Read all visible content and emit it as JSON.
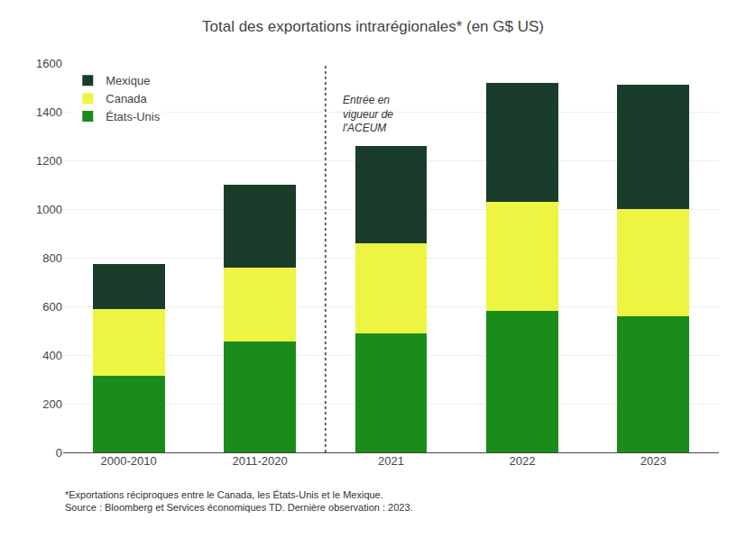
{
  "chart_data": {
    "type": "bar",
    "title": "Total des exportations intrarégionales* (en G$ US)",
    "categories": [
      "2000-2010",
      "2011-2020",
      "2021",
      "2022",
      "2023"
    ],
    "stacked": true,
    "series": [
      {
        "name": "États-Unis",
        "color": "#1a8c1a",
        "values": [
          315,
          455,
          490,
          580,
          560
        ]
      },
      {
        "name": "Canada",
        "color": "#edf542",
        "values": [
          275,
          305,
          370,
          450,
          440
        ]
      },
      {
        "name": "Mexique",
        "color": "#1a3d2b",
        "values": [
          185,
          340,
          400,
          490,
          510
        ]
      }
    ],
    "ylim": [
      0,
      1600
    ],
    "yticks": [
      0,
      200,
      400,
      600,
      800,
      1000,
      1200,
      1400,
      1600
    ],
    "grid": true,
    "legend": "upper left",
    "annotations": [
      {
        "text": "Entrée en\nvigueur de\nl'ACEUM",
        "x": "2021",
        "y": 1480
      }
    ],
    "footnotes": [
      "*Exportations réciproques entre le Canada, les États-Unis et le Mexique.",
      "Source : Bloomberg et Services économiques TD. Dernière observation : 2023."
    ]
  }
}
